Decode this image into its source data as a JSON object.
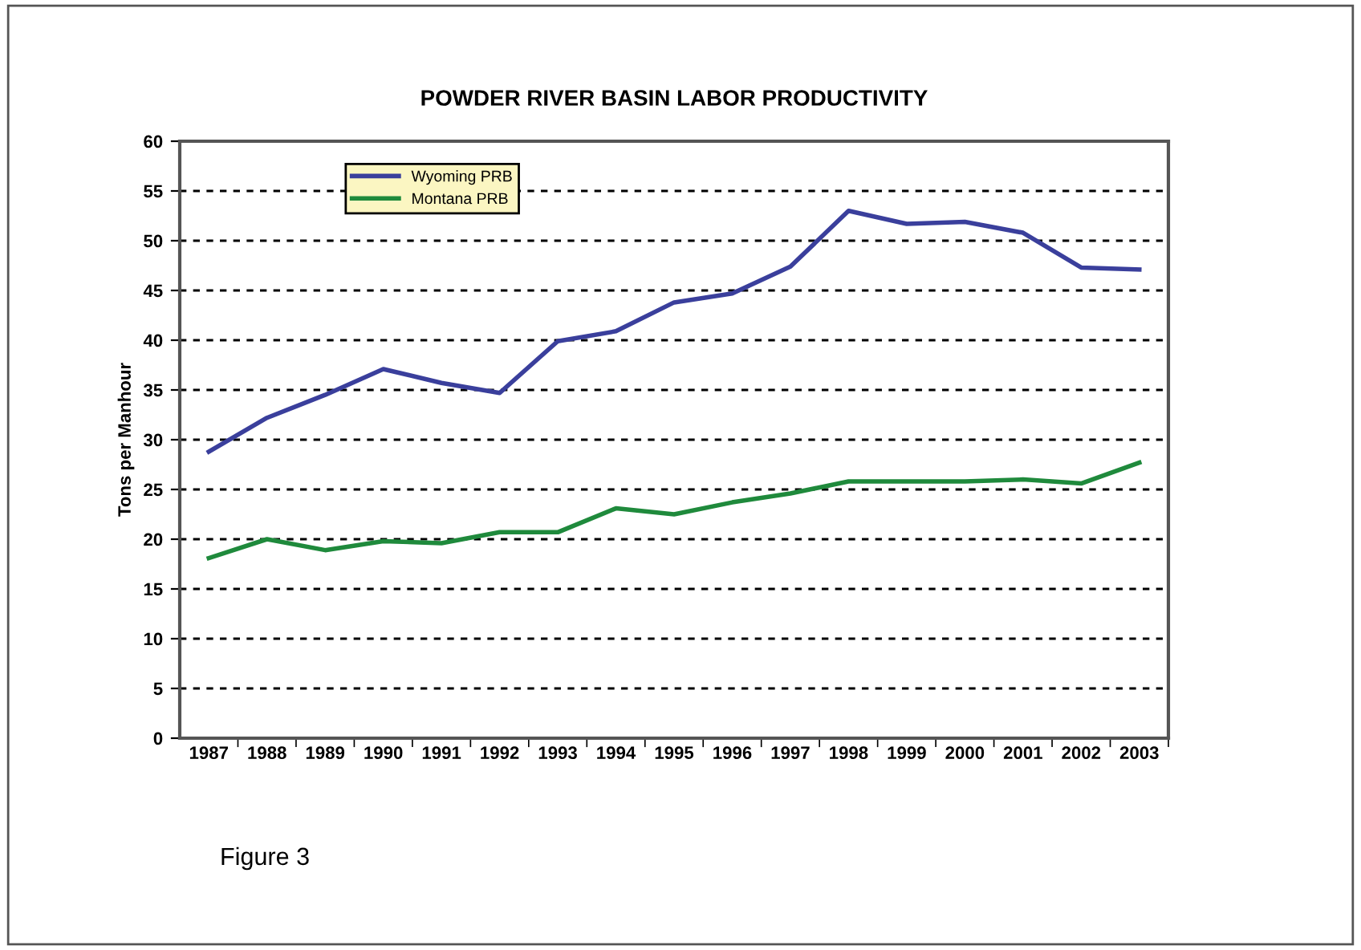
{
  "chart_data": {
    "type": "line",
    "title": "POWDER RIVER BASIN LABOR PRODUCTIVITY",
    "ylabel": "Tons per Manhour",
    "categories": [
      "1987",
      "1988",
      "1989",
      "1990",
      "1991",
      "1992",
      "1993",
      "1994",
      "1995",
      "1996",
      "1997",
      "1998",
      "1999",
      "2000",
      "2001",
      "2002",
      "2003"
    ],
    "series": [
      {
        "name": "Wyoming PRB",
        "color": "#3a3f9c",
        "values": [
          28.8,
          32.2,
          34.5,
          37.1,
          35.7,
          34.7,
          39.9,
          40.9,
          43.8,
          44.7,
          47.4,
          53.0,
          51.7,
          51.9,
          50.8,
          47.3,
          47.1
        ]
      },
      {
        "name": "Montana PRB",
        "color": "#1f8a3c",
        "values": [
          18.1,
          20.0,
          18.9,
          19.8,
          19.6,
          20.7,
          20.7,
          23.1,
          22.5,
          23.7,
          24.6,
          25.8,
          25.8,
          25.8,
          26.0,
          25.6,
          27.7
        ]
      }
    ],
    "ylim": [
      0,
      60
    ],
    "yticks": [
      0,
      5,
      10,
      15,
      20,
      25,
      30,
      35,
      40,
      45,
      50,
      55,
      60
    ],
    "grid": "y",
    "legend": "top left",
    "marker": "none",
    "line_style": "solid",
    "annotations": [
      "Figure 3"
    ]
  }
}
